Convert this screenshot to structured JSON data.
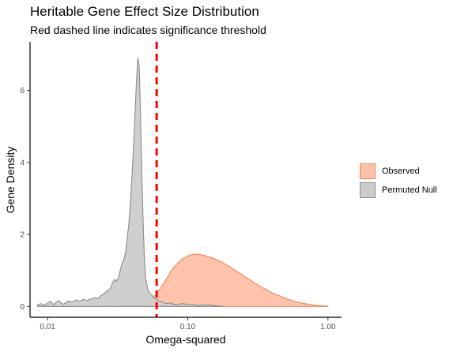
{
  "chart_data": {
    "type": "area",
    "title": "Heritable Gene Effect Size Distribution",
    "subtitle": "Red dashed line indicates significance threshold",
    "xlabel": "Omega-squared",
    "ylabel": "Gene Density",
    "x_scale": "log10",
    "xlim": [
      0.0075,
      1.25
    ],
    "ylim": [
      -0.3,
      7.35
    ],
    "x_ticks": [
      0.01,
      0.1,
      1.0
    ],
    "x_tick_labels": [
      "0.01",
      "0.10",
      "1.00"
    ],
    "y_ticks": [
      0,
      2,
      4,
      6
    ],
    "y_tick_labels": [
      "0",
      "2",
      "4",
      "6"
    ],
    "threshold": {
      "x": 0.06,
      "color": "#ff0000",
      "style": "dashed"
    },
    "legend": {
      "placement": "right"
    },
    "series": [
      {
        "name": "Permuted Null",
        "fill": "#cccccc",
        "stroke": "#8c8c8c",
        "x": [
          0.0085,
          0.009,
          0.0095,
          0.01,
          0.0105,
          0.011,
          0.0115,
          0.012,
          0.0125,
          0.013,
          0.014,
          0.015,
          0.016,
          0.017,
          0.018,
          0.019,
          0.02,
          0.021,
          0.022,
          0.023,
          0.024,
          0.025,
          0.026,
          0.027,
          0.028,
          0.029,
          0.03,
          0.031,
          0.032,
          0.033,
          0.034,
          0.035,
          0.036,
          0.037,
          0.038,
          0.039,
          0.04,
          0.041,
          0.042,
          0.043,
          0.044,
          0.045,
          0.046,
          0.047,
          0.048,
          0.049,
          0.05,
          0.052,
          0.054,
          0.056,
          0.058,
          0.06,
          0.063,
          0.066,
          0.07,
          0.075,
          0.08,
          0.085,
          0.09,
          0.1,
          0.11,
          0.12,
          0.13,
          0.14,
          0.15,
          0.16,
          0.17,
          0.18
        ],
        "y": [
          0.05,
          0.08,
          0.03,
          0.1,
          0.14,
          0.05,
          0.12,
          0.16,
          0.1,
          0.06,
          0.15,
          0.12,
          0.18,
          0.14,
          0.2,
          0.16,
          0.2,
          0.22,
          0.25,
          0.22,
          0.3,
          0.34,
          0.4,
          0.45,
          0.5,
          0.65,
          0.75,
          0.7,
          0.8,
          1.0,
          1.2,
          1.3,
          1.5,
          1.9,
          2.3,
          2.9,
          3.6,
          4.4,
          5.3,
          6.2,
          6.9,
          6.7,
          5.4,
          3.8,
          2.4,
          1.4,
          0.8,
          0.45,
          0.35,
          0.3,
          0.22,
          0.2,
          0.14,
          0.12,
          0.08,
          0.1,
          0.06,
          0.05,
          0.08,
          0.06,
          0.05,
          0.03,
          0.04,
          0.05,
          0.03,
          0.02,
          0.01,
          0.0
        ]
      },
      {
        "name": "Observed",
        "fill": "#ffc0a8",
        "stroke": "#f08458",
        "x": [
          0.0085,
          0.02,
          0.03,
          0.04,
          0.045,
          0.05,
          0.055,
          0.06,
          0.065,
          0.07,
          0.075,
          0.08,
          0.09,
          0.1,
          0.11,
          0.12,
          0.13,
          0.15,
          0.17,
          0.2,
          0.25,
          0.3,
          0.35,
          0.4,
          0.5,
          0.6,
          0.7,
          0.8,
          0.9,
          1.0
        ],
        "y": [
          0.0,
          0.0,
          0.01,
          0.03,
          0.05,
          0.1,
          0.2,
          0.35,
          0.55,
          0.75,
          0.95,
          1.1,
          1.3,
          1.4,
          1.45,
          1.45,
          1.42,
          1.35,
          1.25,
          1.1,
          0.85,
          0.65,
          0.5,
          0.38,
          0.22,
          0.12,
          0.07,
          0.04,
          0.02,
          0.01
        ]
      }
    ]
  }
}
